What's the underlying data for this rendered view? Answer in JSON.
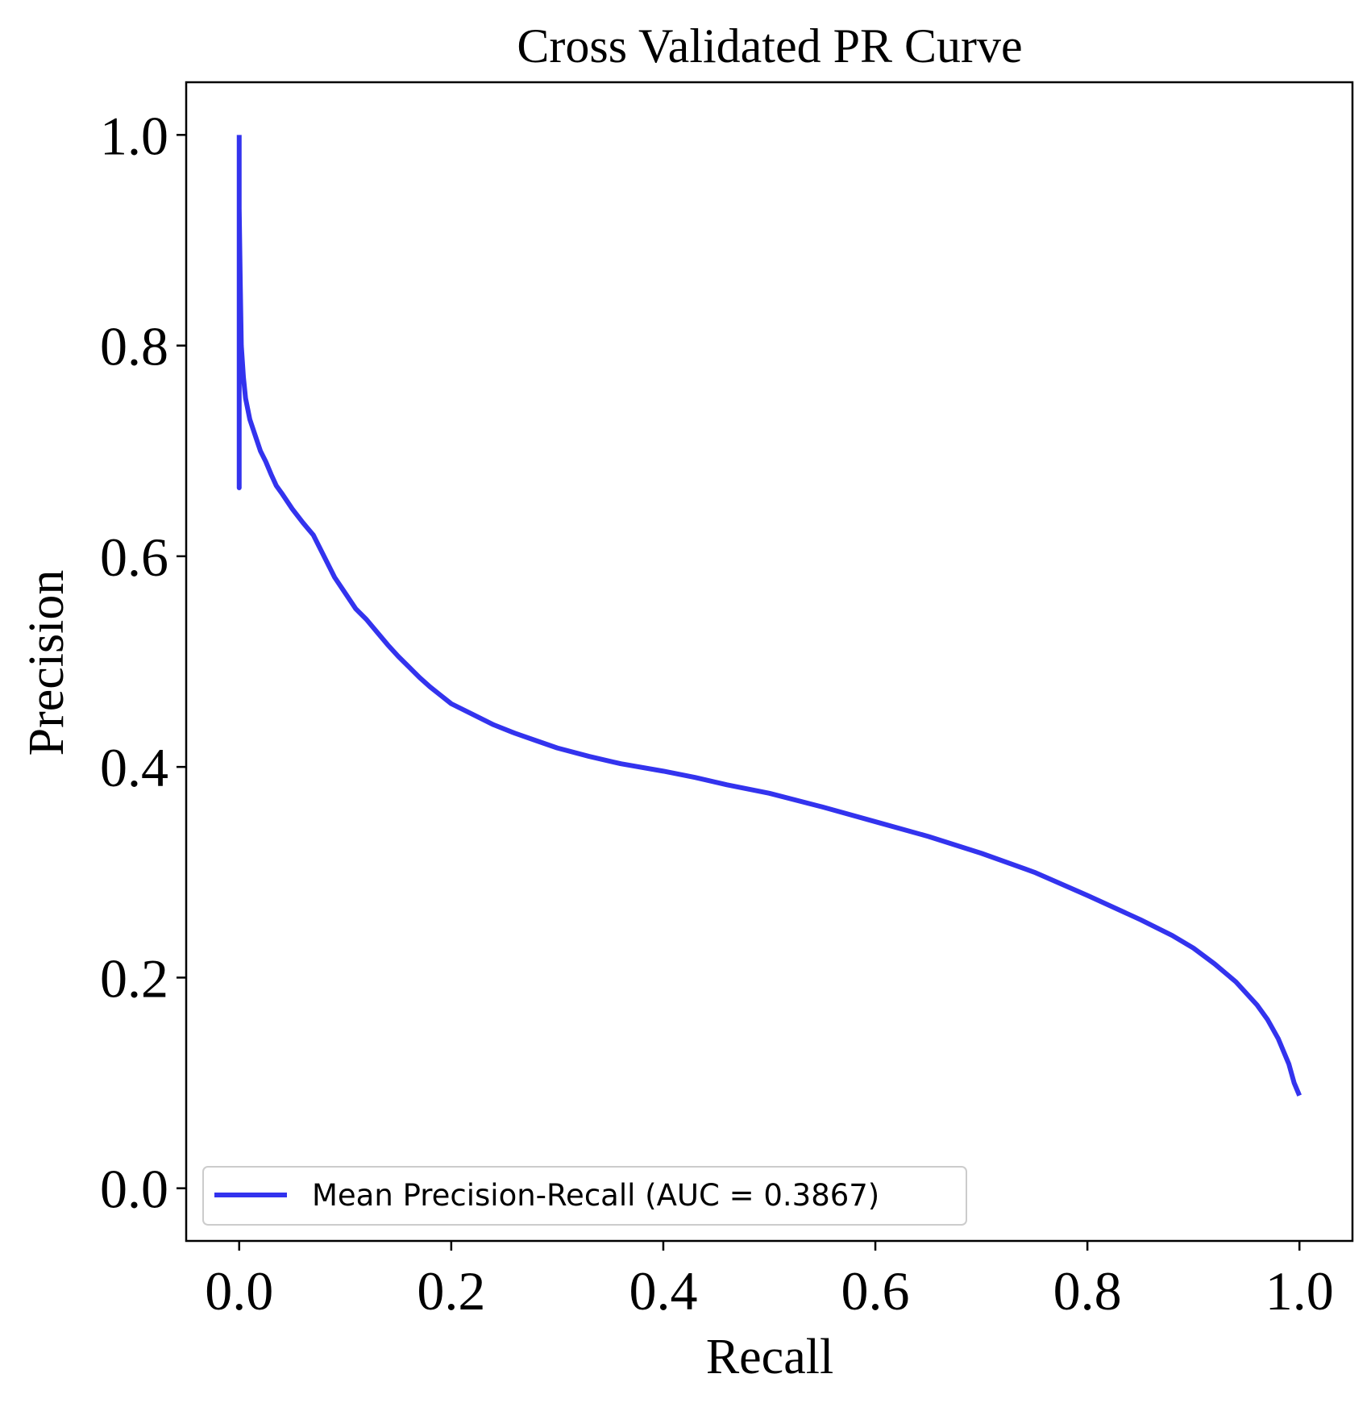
{
  "chart_data": {
    "type": "line",
    "title": "Cross Validated PR Curve",
    "xlabel": "Recall",
    "ylabel": "Precision",
    "xlim": [
      -0.05,
      1.05
    ],
    "ylim": [
      -0.05,
      1.05
    ],
    "xticks": [
      {
        "value": 0.0,
        "label": "0.0"
      },
      {
        "value": 0.2,
        "label": "0.2"
      },
      {
        "value": 0.4,
        "label": "0.4"
      },
      {
        "value": 0.6,
        "label": "0.6"
      },
      {
        "value": 0.8,
        "label": "0.8"
      },
      {
        "value": 1.0,
        "label": "1.0"
      }
    ],
    "yticks": [
      {
        "value": 0.0,
        "label": "0.0"
      },
      {
        "value": 0.2,
        "label": "0.2"
      },
      {
        "value": 0.4,
        "label": "0.4"
      },
      {
        "value": 0.6,
        "label": "0.6"
      },
      {
        "value": 0.8,
        "label": "0.8"
      },
      {
        "value": 1.0,
        "label": "1.0"
      }
    ],
    "grid": false,
    "legend": {
      "location": "lower-left"
    },
    "series": [
      {
        "name": "Mean Precision-Recall (AUC = 0.3867)",
        "color": "#3333ee",
        "x": [
          0.0,
          0.0,
          0.0,
          0.001,
          0.002,
          0.004,
          0.006,
          0.01,
          0.015,
          0.02,
          0.025,
          0.03,
          0.035,
          0.04,
          0.05,
          0.06,
          0.07,
          0.08,
          0.09,
          0.1,
          0.11,
          0.12,
          0.13,
          0.14,
          0.15,
          0.16,
          0.17,
          0.18,
          0.19,
          0.2,
          0.22,
          0.24,
          0.26,
          0.28,
          0.3,
          0.33,
          0.36,
          0.4,
          0.43,
          0.46,
          0.5,
          0.55,
          0.6,
          0.65,
          0.7,
          0.75,
          0.8,
          0.85,
          0.88,
          0.9,
          0.92,
          0.94,
          0.96,
          0.97,
          0.98,
          0.99,
          0.995,
          1.0
        ],
        "y": [
          1.0,
          0.665,
          0.93,
          0.86,
          0.8,
          0.77,
          0.75,
          0.73,
          0.715,
          0.7,
          0.69,
          0.678,
          0.667,
          0.66,
          0.645,
          0.632,
          0.62,
          0.6,
          0.58,
          0.565,
          0.55,
          0.54,
          0.528,
          0.516,
          0.505,
          0.495,
          0.485,
          0.476,
          0.468,
          0.46,
          0.45,
          0.44,
          0.432,
          0.425,
          0.418,
          0.41,
          0.403,
          0.396,
          0.39,
          0.383,
          0.375,
          0.362,
          0.348,
          0.334,
          0.318,
          0.3,
          0.278,
          0.255,
          0.24,
          0.228,
          0.213,
          0.196,
          0.174,
          0.16,
          0.142,
          0.118,
          0.1,
          0.088
        ]
      }
    ]
  }
}
